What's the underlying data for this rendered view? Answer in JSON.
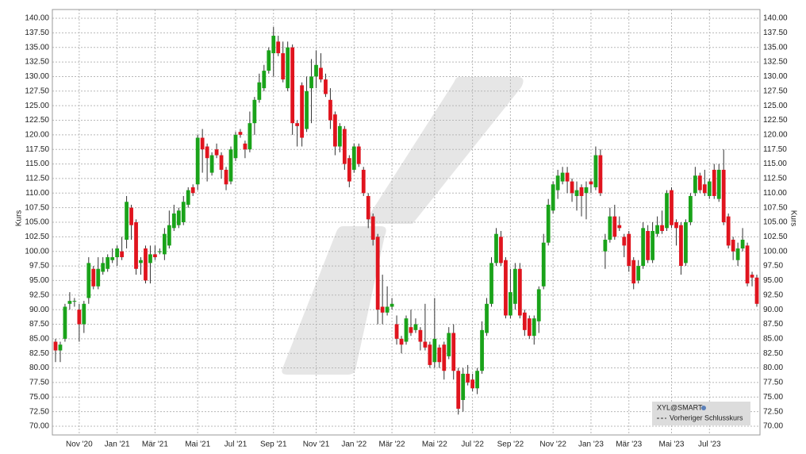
{
  "chart_data": {
    "type": "candlestick",
    "y_label": "Kurs",
    "legend": {
      "symbol": "XYL@SMART",
      "entry": "Vorheriger Schlusskurs"
    },
    "colors": {
      "up": "#1aa31a",
      "down": "#e0141e"
    },
    "grid": true,
    "ylim": [
      68.5,
      141.5
    ],
    "yticks": [
      {
        "value": 70,
        "label": "70.00"
      },
      {
        "value": 72.5,
        "label": "72.50"
      },
      {
        "value": 75,
        "label": "75.00"
      },
      {
        "value": 77.5,
        "label": "77.50"
      },
      {
        "value": 80,
        "label": "80.00"
      },
      {
        "value": 82.5,
        "label": "82.50"
      },
      {
        "value": 85,
        "label": "85.00"
      },
      {
        "value": 87.5,
        "label": "87.50"
      },
      {
        "value": 90,
        "label": "90.00"
      },
      {
        "value": 92.5,
        "label": "92.50"
      },
      {
        "value": 95,
        "label": "95.00"
      },
      {
        "value": 97.5,
        "label": "97.50"
      },
      {
        "value": 100,
        "label": "100.00"
      },
      {
        "value": 102.5,
        "label": "102.50"
      },
      {
        "value": 105,
        "label": "105.00"
      },
      {
        "value": 107.5,
        "label": "107.50"
      },
      {
        "value": 110,
        "label": "110.00"
      },
      {
        "value": 112.5,
        "label": "112.50"
      },
      {
        "value": 115,
        "label": "115.00"
      },
      {
        "value": 117.5,
        "label": "117.50"
      },
      {
        "value": 120,
        "label": "120.00"
      },
      {
        "value": 122.5,
        "label": "122.50"
      },
      {
        "value": 125,
        "label": "125.00"
      },
      {
        "value": 127.5,
        "label": "127.50"
      },
      {
        "value": 130,
        "label": "130.00"
      },
      {
        "value": 132.5,
        "label": "132.50"
      },
      {
        "value": 135,
        "label": "135.00"
      },
      {
        "value": 137.5,
        "label": "137.50"
      },
      {
        "value": 140,
        "label": "140.00"
      }
    ],
    "categories": [
      null,
      null,
      null,
      null,
      null,
      "Nov '20",
      null,
      null,
      null,
      null,
      null,
      null,
      null,
      "Jan '21",
      null,
      null,
      null,
      null,
      null,
      null,
      null,
      "Mär '21",
      null,
      null,
      null,
      null,
      null,
      null,
      null,
      null,
      "Mai '21",
      null,
      null,
      null,
      null,
      null,
      null,
      null,
      "Jul '21",
      null,
      null,
      null,
      null,
      null,
      null,
      null,
      "Sep '21",
      null,
      null,
      null,
      null,
      null,
      null,
      null,
      null,
      "Nov '21",
      null,
      null,
      null,
      null,
      null,
      null,
      null,
      "Jan '22",
      null,
      null,
      null,
      null,
      null,
      null,
      null,
      "Mär '22",
      null,
      null,
      null,
      null,
      null,
      null,
      null,
      null,
      "Mai '22",
      null,
      null,
      null,
      null,
      null,
      null,
      null,
      "Jul '22",
      null,
      null,
      null,
      null,
      null,
      null,
      null,
      "Sep '22",
      null,
      null,
      null,
      null,
      null,
      null,
      null,
      null,
      "Nov '22",
      null,
      null,
      null,
      null,
      null,
      null,
      null,
      "Jan '23",
      null,
      null,
      null,
      null,
      null,
      null,
      null,
      "Mär '23",
      null,
      null,
      null,
      null,
      null,
      null,
      null,
      null,
      "Mai '23",
      null,
      null,
      null,
      null,
      null,
      null,
      null,
      "Jul '23",
      null,
      null,
      null,
      null,
      null,
      null,
      null,
      null,
      null,
      null
    ],
    "candles": [
      [
        84.5,
        85,
        81,
        83
      ],
      [
        83,
        84.5,
        81,
        84
      ],
      [
        85,
        91,
        84.5,
        90.5
      ],
      [
        91,
        93,
        90,
        91.5
      ],
      [
        91.5,
        92,
        90.5,
        91.5
      ],
      [
        90,
        91,
        84.5,
        87.5
      ],
      [
        87.5,
        91.5,
        86,
        91
      ],
      [
        92,
        99,
        91,
        98
      ],
      [
        97,
        97.5,
        93.5,
        94
      ],
      [
        94,
        99,
        93.5,
        97
      ],
      [
        96.5,
        99,
        96,
        98
      ],
      [
        97,
        99.5,
        96.5,
        99
      ],
      [
        98.5,
        100.5,
        98,
        99
      ],
      [
        99,
        101,
        97.5,
        100.5
      ],
      [
        100,
        102.5,
        98.5,
        99
      ],
      [
        102,
        109.5,
        100.5,
        108.5
      ],
      [
        107.5,
        108,
        102,
        104.5
      ],
      [
        105,
        105.5,
        96,
        97
      ],
      [
        98,
        99,
        96,
        98.5
      ],
      [
        100.5,
        101,
        94.5,
        95
      ],
      [
        98,
        101,
        94.5,
        99.5
      ],
      [
        99.5,
        101,
        98.5,
        99
      ],
      [
        100,
        100.5,
        99.5,
        100
      ],
      [
        99.5,
        104,
        98.5,
        103
      ],
      [
        101,
        107,
        100.5,
        104.5
      ],
      [
        104,
        108,
        103.5,
        106.5
      ],
      [
        104.5,
        107.5,
        104,
        107
      ],
      [
        105,
        109.5,
        104.5,
        108.5
      ],
      [
        108,
        111,
        107.5,
        110.5
      ],
      [
        111,
        111.5,
        109.5,
        110
      ],
      [
        111.5,
        120,
        110.5,
        119.5
      ],
      [
        119.5,
        121,
        113.5,
        117.5
      ],
      [
        118,
        118.5,
        112,
        116
      ],
      [
        113.5,
        117,
        113,
        116.5
      ],
      [
        117.5,
        118.5,
        116,
        116.5
      ],
      [
        116.5,
        117,
        112.5,
        114
      ],
      [
        114,
        114.5,
        110.5,
        111.5
      ],
      [
        112,
        118,
        111.5,
        117.5
      ],
      [
        116,
        120.5,
        115.5,
        120
      ],
      [
        120.5,
        121,
        119.5,
        120
      ],
      [
        118.5,
        119,
        116,
        117.5
      ],
      [
        117.5,
        124,
        117,
        122
      ],
      [
        122,
        126.5,
        120,
        126
      ],
      [
        126,
        130.5,
        125.5,
        129
      ],
      [
        128,
        132,
        127.5,
        131
      ],
      [
        131,
        135,
        130.5,
        134.5
      ],
      [
        134,
        138.5,
        130,
        137
      ],
      [
        136,
        137,
        133.5,
        134
      ],
      [
        134,
        136,
        129,
        129.5
      ],
      [
        128,
        136,
        127.5,
        135
      ],
      [
        135,
        135.5,
        120,
        122
      ],
      [
        122,
        122.5,
        118,
        121.5
      ],
      [
        128.5,
        129,
        118,
        119.5
      ],
      [
        121,
        130,
        120.5,
        127.5
      ],
      [
        128,
        133,
        122,
        130
      ],
      [
        130,
        134.5,
        128,
        132
      ],
      [
        131.5,
        134,
        129,
        129.5
      ],
      [
        129.5,
        130.5,
        126.5,
        127
      ],
      [
        126,
        128,
        121,
        122.5
      ],
      [
        123.5,
        124,
        116.5,
        118
      ],
      [
        118,
        122,
        117,
        121.5
      ],
      [
        121,
        121.5,
        114,
        115
      ],
      [
        116,
        116.5,
        111,
        112
      ],
      [
        114,
        118.5,
        113.5,
        118
      ],
      [
        118,
        118.5,
        114.5,
        115
      ],
      [
        114,
        114.5,
        109.5,
        110
      ],
      [
        109.5,
        110,
        104,
        105.5
      ],
      [
        106,
        106.5,
        101,
        102
      ],
      [
        102.5,
        103,
        87.5,
        90
      ],
      [
        90.5,
        96,
        87.5,
        89.5
      ],
      [
        89.5,
        94,
        89,
        90.5
      ],
      [
        90.5,
        92,
        90,
        91
      ],
      [
        87.5,
        89,
        84,
        85
      ],
      [
        85,
        85.5,
        82.5,
        84
      ],
      [
        84.5,
        89,
        84,
        88.5
      ],
      [
        87,
        90,
        85.5,
        86
      ],
      [
        86.5,
        88.5,
        86,
        87.5
      ],
      [
        86.5,
        87,
        83,
        84.5
      ],
      [
        84.5,
        91,
        83,
        83.5
      ],
      [
        84,
        84.5,
        80,
        80.5
      ],
      [
        81,
        92,
        80,
        85
      ],
      [
        83.5,
        84,
        80,
        81
      ],
      [
        84,
        84.5,
        78,
        79.5
      ],
      [
        82,
        87,
        81.5,
        86
      ],
      [
        86,
        87.5,
        78,
        79.5
      ],
      [
        79.5,
        80,
        72,
        73
      ],
      [
        74.5,
        80,
        72.5,
        79
      ],
      [
        79,
        80.5,
        77,
        77.5
      ],
      [
        78,
        79,
        76,
        76.5
      ],
      [
        76.5,
        80,
        75.5,
        79.5
      ],
      [
        79.5,
        88,
        79,
        86.5
      ],
      [
        86,
        92,
        85.5,
        91
      ],
      [
        91,
        99,
        90.5,
        98
      ],
      [
        98,
        104,
        97.5,
        103
      ],
      [
        102.5,
        103.5,
        97.5,
        98
      ],
      [
        98.5,
        99,
        88.5,
        89
      ],
      [
        89,
        97,
        88.5,
        93
      ],
      [
        91,
        98,
        90,
        97
      ],
      [
        97,
        98,
        88.5,
        89
      ],
      [
        89.5,
        90,
        85.5,
        86.5
      ],
      [
        88.5,
        89,
        85,
        85.5
      ],
      [
        85.5,
        89,
        84,
        88.5
      ],
      [
        88,
        94,
        86,
        93.5
      ],
      [
        94,
        103,
        93.5,
        101.5
      ],
      [
        101.5,
        109,
        101,
        108
      ],
      [
        107,
        112,
        106.5,
        111.5
      ],
      [
        110.5,
        114,
        109,
        113
      ],
      [
        112,
        114.5,
        111.5,
        113.5
      ],
      [
        113.5,
        114.5,
        110,
        112
      ],
      [
        112,
        112.5,
        108.5,
        110
      ],
      [
        109.5,
        112,
        107,
        110.5
      ],
      [
        111,
        111.5,
        106,
        109.5
      ],
      [
        110,
        112,
        105.5,
        111
      ],
      [
        112,
        112.5,
        110,
        111.5
      ],
      [
        111,
        118,
        110.5,
        116.5
      ],
      [
        116.5,
        117.5,
        109.5,
        110
      ],
      [
        100,
        103,
        97,
        102
      ],
      [
        102,
        107.5,
        101.5,
        106
      ],
      [
        106,
        108,
        102,
        102.5
      ],
      [
        104.5,
        106,
        103.5,
        104
      ],
      [
        102.5,
        103,
        99,
        101
      ],
      [
        103,
        103.5,
        96.5,
        97.5
      ],
      [
        98.5,
        99,
        93.5,
        94.5
      ],
      [
        95,
        98.5,
        94.5,
        97.5
      ],
      [
        97.5,
        105,
        97,
        104
      ],
      [
        103.5,
        104.5,
        98,
        98.5
      ],
      [
        98.5,
        105,
        98,
        103.5
      ],
      [
        103,
        106,
        102.5,
        104.5
      ],
      [
        104.5,
        107,
        103,
        103.5
      ],
      [
        104,
        110.5,
        103.5,
        110
      ],
      [
        110.5,
        111,
        104,
        104.5
      ],
      [
        105,
        105.5,
        101,
        104
      ],
      [
        104.5,
        105,
        96,
        97.5
      ],
      [
        98,
        105.5,
        97.5,
        105
      ],
      [
        105,
        110,
        104.5,
        109.5
      ],
      [
        110,
        114.5,
        109.5,
        113
      ],
      [
        113,
        113.5,
        110,
        110.5
      ],
      [
        111.5,
        114,
        109.5,
        110
      ],
      [
        109.5,
        112.5,
        109,
        112
      ],
      [
        114,
        115,
        109,
        109.5
      ],
      [
        109,
        115,
        108.5,
        114
      ],
      [
        114,
        117.5,
        104.5,
        105
      ],
      [
        106,
        106.5,
        100.5,
        101
      ],
      [
        102,
        102.5,
        98.5,
        100
      ],
      [
        98.5,
        101.5,
        97.5,
        100.5
      ],
      [
        100.5,
        104,
        100,
        102
      ],
      [
        101,
        101.5,
        94,
        94.5
      ],
      [
        96,
        96.5,
        94,
        95.5
      ],
      [
        95.5,
        96,
        90.5,
        91
      ]
    ]
  }
}
